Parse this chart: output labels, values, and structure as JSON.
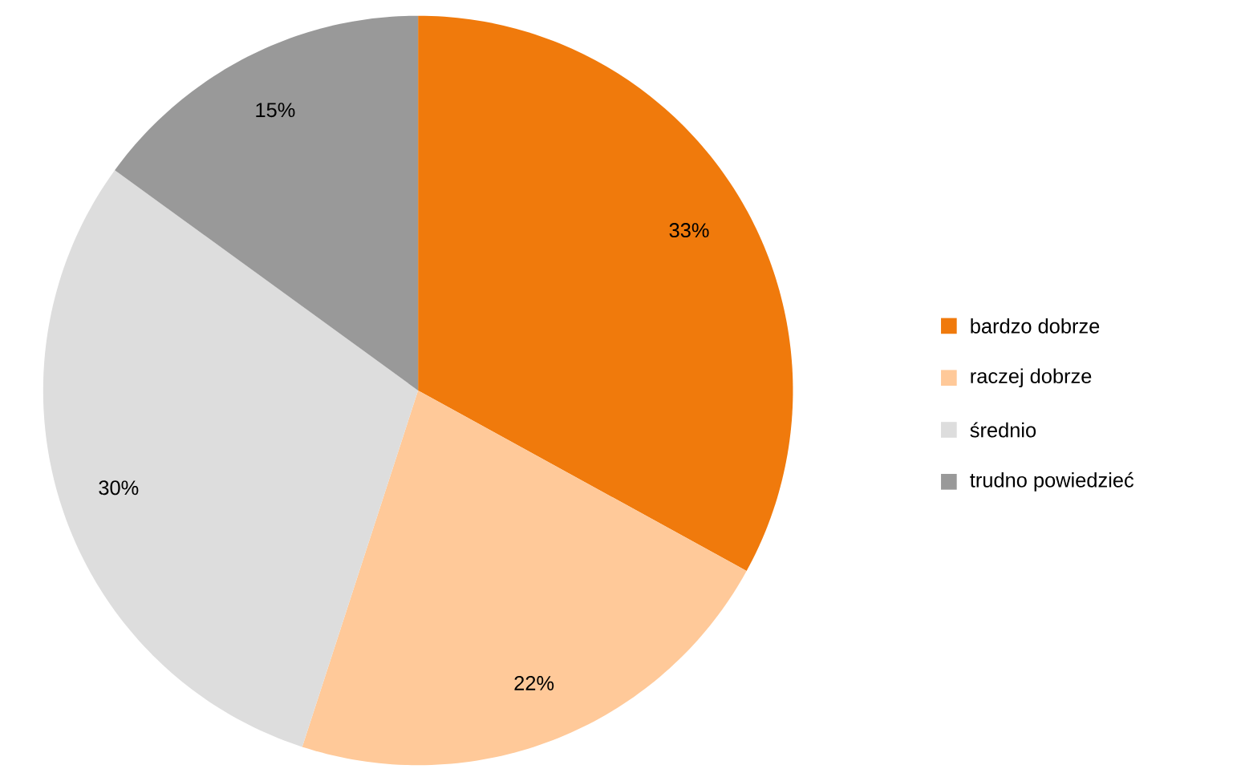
{
  "chart_data": {
    "type": "pie",
    "categories": [
      "bardzo dobrze",
      "raczej dobrze",
      "średnio",
      "trudno powiedzieć"
    ],
    "values": [
      33,
      22,
      30,
      15
    ],
    "colors": [
      "#f07a0c",
      "#ffc999",
      "#dddddd",
      "#999999"
    ],
    "value_labels": [
      "33%",
      "22%",
      "30%",
      "15%"
    ],
    "legend": "right"
  }
}
